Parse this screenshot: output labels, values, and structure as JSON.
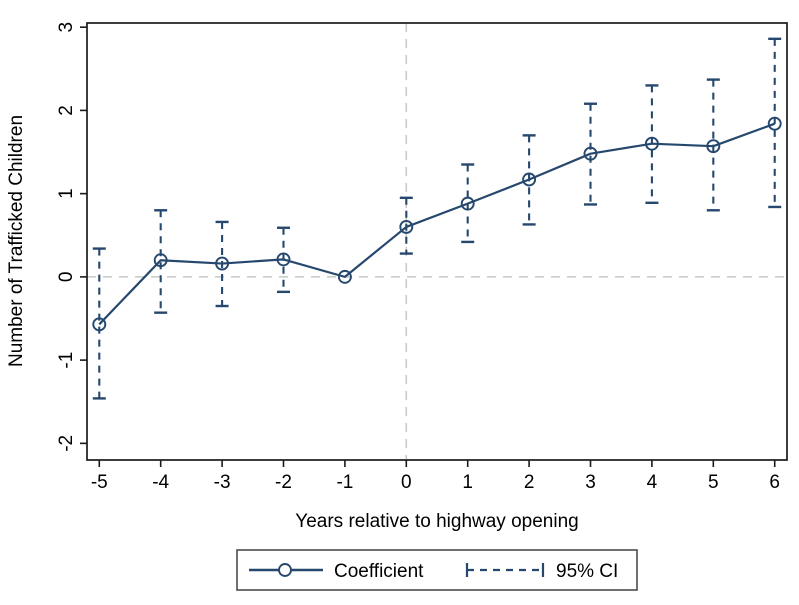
{
  "chart_data": {
    "type": "line",
    "title": "",
    "xlabel": "Years relative to highway opening",
    "ylabel": "Number of Trafficked Children",
    "x": [
      -5,
      -4,
      -3,
      -2,
      -1,
      0,
      1,
      2,
      3,
      4,
      5,
      6
    ],
    "series": [
      {
        "name": "Coefficient",
        "marker": "hollow-circle",
        "line_style": "solid",
        "values": [
          -0.57,
          0.2,
          0.16,
          0.21,
          0.0,
          0.6,
          0.88,
          1.17,
          1.48,
          1.6,
          1.57,
          1.84
        ]
      },
      {
        "name": "95% CI",
        "line_style": "dashed-error-bars-with-caps",
        "low": [
          -1.46,
          -0.43,
          -0.35,
          -0.18,
          null,
          0.28,
          0.42,
          0.63,
          0.87,
          0.89,
          0.8,
          0.84
        ],
        "high": [
          0.34,
          0.8,
          0.66,
          0.59,
          null,
          0.95,
          1.35,
          1.7,
          2.08,
          2.3,
          2.37,
          2.86
        ]
      }
    ],
    "x_ticks": [
      -5,
      -4,
      -3,
      -2,
      -1,
      0,
      1,
      2,
      3,
      4,
      5,
      6
    ],
    "y_ticks": [
      -2,
      -1,
      0,
      1,
      2,
      3
    ],
    "xlim": [
      -5.2,
      6.2
    ],
    "ylim": [
      -2.2,
      3.05
    ],
    "reference_lines": {
      "horizontal_at_y": 0,
      "vertical_at_x": 0,
      "style": "dashed"
    },
    "grid": false,
    "legend": {
      "position": "bottom-center",
      "entries": [
        {
          "label": "Coefficient",
          "sample": "solid-line-hollow-circle"
        },
        {
          "label": "95% CI",
          "sample": "dashed-line-end-caps"
        }
      ]
    },
    "colors": {
      "series": "#27486e",
      "reference": "#c5cac5",
      "axis": "#1a1a1a",
      "text": "#000000",
      "legend_border": "#4d4d4d",
      "background": "#ffffff"
    }
  }
}
